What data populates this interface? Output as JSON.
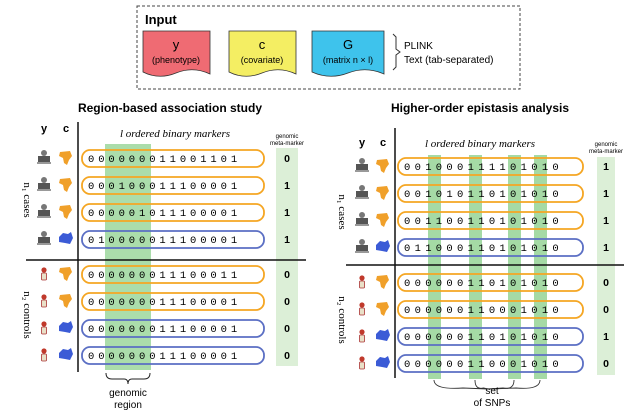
{
  "input_panel": {
    "title": "Input",
    "docs": [
      {
        "symbol": "y",
        "sub": "(phenotype)",
        "color": "#ef6b73"
      },
      {
        "symbol": "c",
        "sub": "(covariate)",
        "color": "#f4ee63"
      },
      {
        "symbol": "G",
        "sub": "(matrix n × l)",
        "color": "#3ec3ec"
      }
    ],
    "formats": [
      "PLINK",
      "Text (tab-separated)"
    ]
  },
  "colors": {
    "orange_row": "#f5a623",
    "blue_row": "#5b6fc4",
    "green_band": "#8fd18f",
    "meta_bg": "#dcefd7",
    "australia": "#3b5bd6",
    "africa": "#f0a02a"
  },
  "left_panel": {
    "title": "Region-based association study",
    "col_y": "y",
    "col_c": "c",
    "markers_label": "l ordered binary markers",
    "meta_header": [
      "genomic",
      "meta-marker"
    ],
    "cases_label": "n₁ cases",
    "controls_label": "n₂ controls",
    "footnote": [
      "genomic",
      "region"
    ],
    "rows": [
      {
        "icon": "case-icon",
        "cont": "africa",
        "bits": "000000011001101",
        "meta": "0",
        "outline": "orange"
      },
      {
        "icon": "case-icon",
        "cont": "africa",
        "bits": "000100011100001",
        "meta": "1",
        "outline": "orange"
      },
      {
        "icon": "case-icon",
        "cont": "africa",
        "bits": "000001011100001",
        "meta": "1",
        "outline": "orange"
      },
      {
        "icon": "case-icon",
        "cont": "australia",
        "bits": "010000011100001",
        "meta": "1",
        "outline": "blue"
      },
      {
        "icon": "control-icon",
        "cont": "africa",
        "bits": "000000011100011",
        "meta": "0",
        "outline": "orange"
      },
      {
        "icon": "control-icon",
        "cont": "africa",
        "bits": "000000011100001",
        "meta": "0",
        "outline": "orange"
      },
      {
        "icon": "control-icon",
        "cont": "australia",
        "bits": "000000011100001",
        "meta": "0",
        "outline": "blue"
      },
      {
        "icon": "control-icon",
        "cont": "australia",
        "bits": "000000011100001",
        "meta": "0",
        "outline": "blue"
      }
    ]
  },
  "right_panel": {
    "title": "Higher-order epistasis analysis",
    "col_y": "y",
    "col_c": "c",
    "markers_label": "l ordered binary markers",
    "meta_header": [
      "genomic",
      "meta-marker"
    ],
    "cases_label": "n₁ cases",
    "controls_label": "n₂ controls",
    "footnote": [
      "set",
      "of SNPs"
    ],
    "rows": [
      {
        "icon": "case-icon",
        "cont": "africa",
        "bits": "001000111101010",
        "meta": "1",
        "outline": "orange"
      },
      {
        "icon": "case-icon",
        "cont": "africa",
        "bits": "001010110101010",
        "meta": "1",
        "outline": "orange"
      },
      {
        "icon": "case-icon",
        "cont": "africa",
        "bits": "001100110101010",
        "meta": "1",
        "outline": "orange"
      },
      {
        "icon": "case-icon",
        "cont": "australia",
        "bits": "011000110101010",
        "meta": "1",
        "outline": "blue"
      },
      {
        "icon": "control-icon",
        "cont": "africa",
        "bits": "000000110101010",
        "meta": "0",
        "outline": "orange"
      },
      {
        "icon": "control-icon",
        "cont": "africa",
        "bits": "000000110001010",
        "meta": "0",
        "outline": "orange"
      },
      {
        "icon": "control-icon",
        "cont": "australia",
        "bits": "000000110101010",
        "meta": "1",
        "outline": "blue"
      },
      {
        "icon": "control-icon",
        "cont": "australia",
        "bits": "000000110001010",
        "meta": "0",
        "outline": "blue"
      }
    ]
  }
}
